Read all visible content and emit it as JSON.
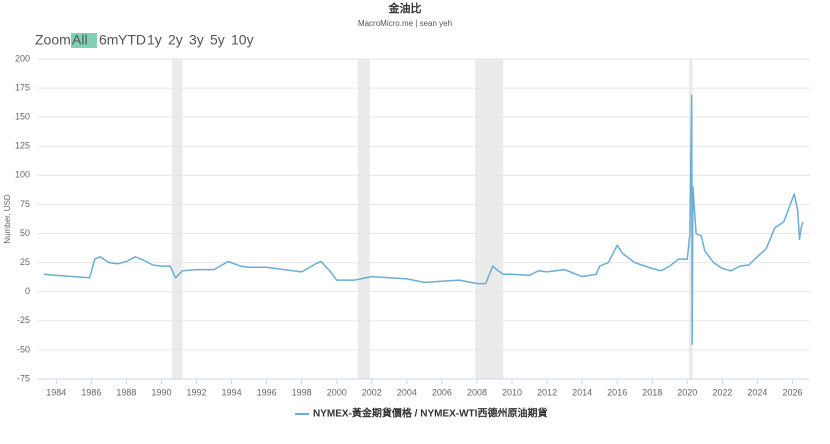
{
  "chart_data": {
    "type": "line",
    "title": "金油比",
    "subtitle": "MacroMicro.me | sean yeh",
    "zoom_label": "Zoom",
    "zoom_buttons": [
      "All",
      "6m",
      "YTD",
      "1y",
      "2y",
      "3y",
      "5y",
      "10y"
    ],
    "y_label": "Number, USD",
    "xlim": [
      1982.9,
      2027.0
    ],
    "ylim": [
      -75,
      200
    ],
    "xticks": [
      1984,
      1986,
      1988,
      1990,
      1992,
      1994,
      1996,
      1998,
      2000,
      2002,
      2004,
      2006,
      2008,
      2010,
      2012,
      2014,
      2016,
      2018,
      2020,
      2022,
      2024,
      2026
    ],
    "yticks": [
      -75,
      -50,
      -25,
      0,
      25,
      50,
      75,
      100,
      125,
      150,
      175,
      200
    ],
    "grid": true,
    "shaded_periods": [
      [
        1990.6,
        1991.2
      ],
      [
        2001.2,
        2001.9
      ],
      [
        2007.9,
        2009.5
      ],
      [
        2020.1,
        2020.3
      ]
    ],
    "shade_color": "#ebebeb",
    "legend_position": "bottom",
    "x": [
      1983.3,
      1984,
      1985,
      1985.9,
      1986.2,
      1986.5,
      1987,
      1987.5,
      1988,
      1988.5,
      1989,
      1989.5,
      1990,
      1990.5,
      1990.8,
      1991.2,
      1992,
      1993,
      1993.8,
      1994.5,
      1995,
      1996,
      1997,
      1998,
      1998.8,
      1999.1,
      1999.6,
      2000,
      2001,
      2002,
      2003,
      2004,
      2005,
      2006,
      2007,
      2008,
      2008.5,
      2008.9,
      2009.2,
      2009.5,
      2010,
      2011,
      2011.5,
      2012,
      2013,
      2014,
      2014.8,
      2015,
      2015.5,
      2016,
      2016.3,
      2017,
      2018,
      2018.5,
      2019,
      2019.5,
      2020,
      2020.15,
      2020.25,
      2020.28,
      2020.32,
      2020.5,
      2020.8,
      2021,
      2021.5,
      2022,
      2022.5,
      2023,
      2023.5,
      2024,
      2024.5,
      2025,
      2025.5,
      2025.8,
      2026.1,
      2026.3,
      2026.4,
      2026.5,
      2026.6
    ],
    "series": [
      {
        "name": "NYMEX-黃金期貨價格 / NYMEX-WTI西德州原油期貨",
        "color": "#6aaed6",
        "values": [
          15,
          14,
          13,
          12,
          28,
          30,
          25,
          24,
          26,
          30,
          27,
          23,
          22,
          22,
          12,
          18,
          19,
          19,
          26,
          22,
          21,
          21,
          19,
          17,
          24,
          26,
          18,
          10,
          10,
          13,
          12,
          11,
          8,
          9,
          10,
          7,
          7,
          22,
          18,
          15,
          15,
          14,
          18,
          17,
          19,
          13,
          15,
          22,
          25,
          40,
          33,
          25,
          20,
          18,
          22,
          28,
          28,
          50,
          169,
          -45,
          90,
          50,
          48,
          35,
          25,
          20,
          18,
          22,
          23,
          30,
          37,
          55,
          60,
          72,
          84,
          70,
          45,
          55,
          60
        ]
      }
    ]
  }
}
